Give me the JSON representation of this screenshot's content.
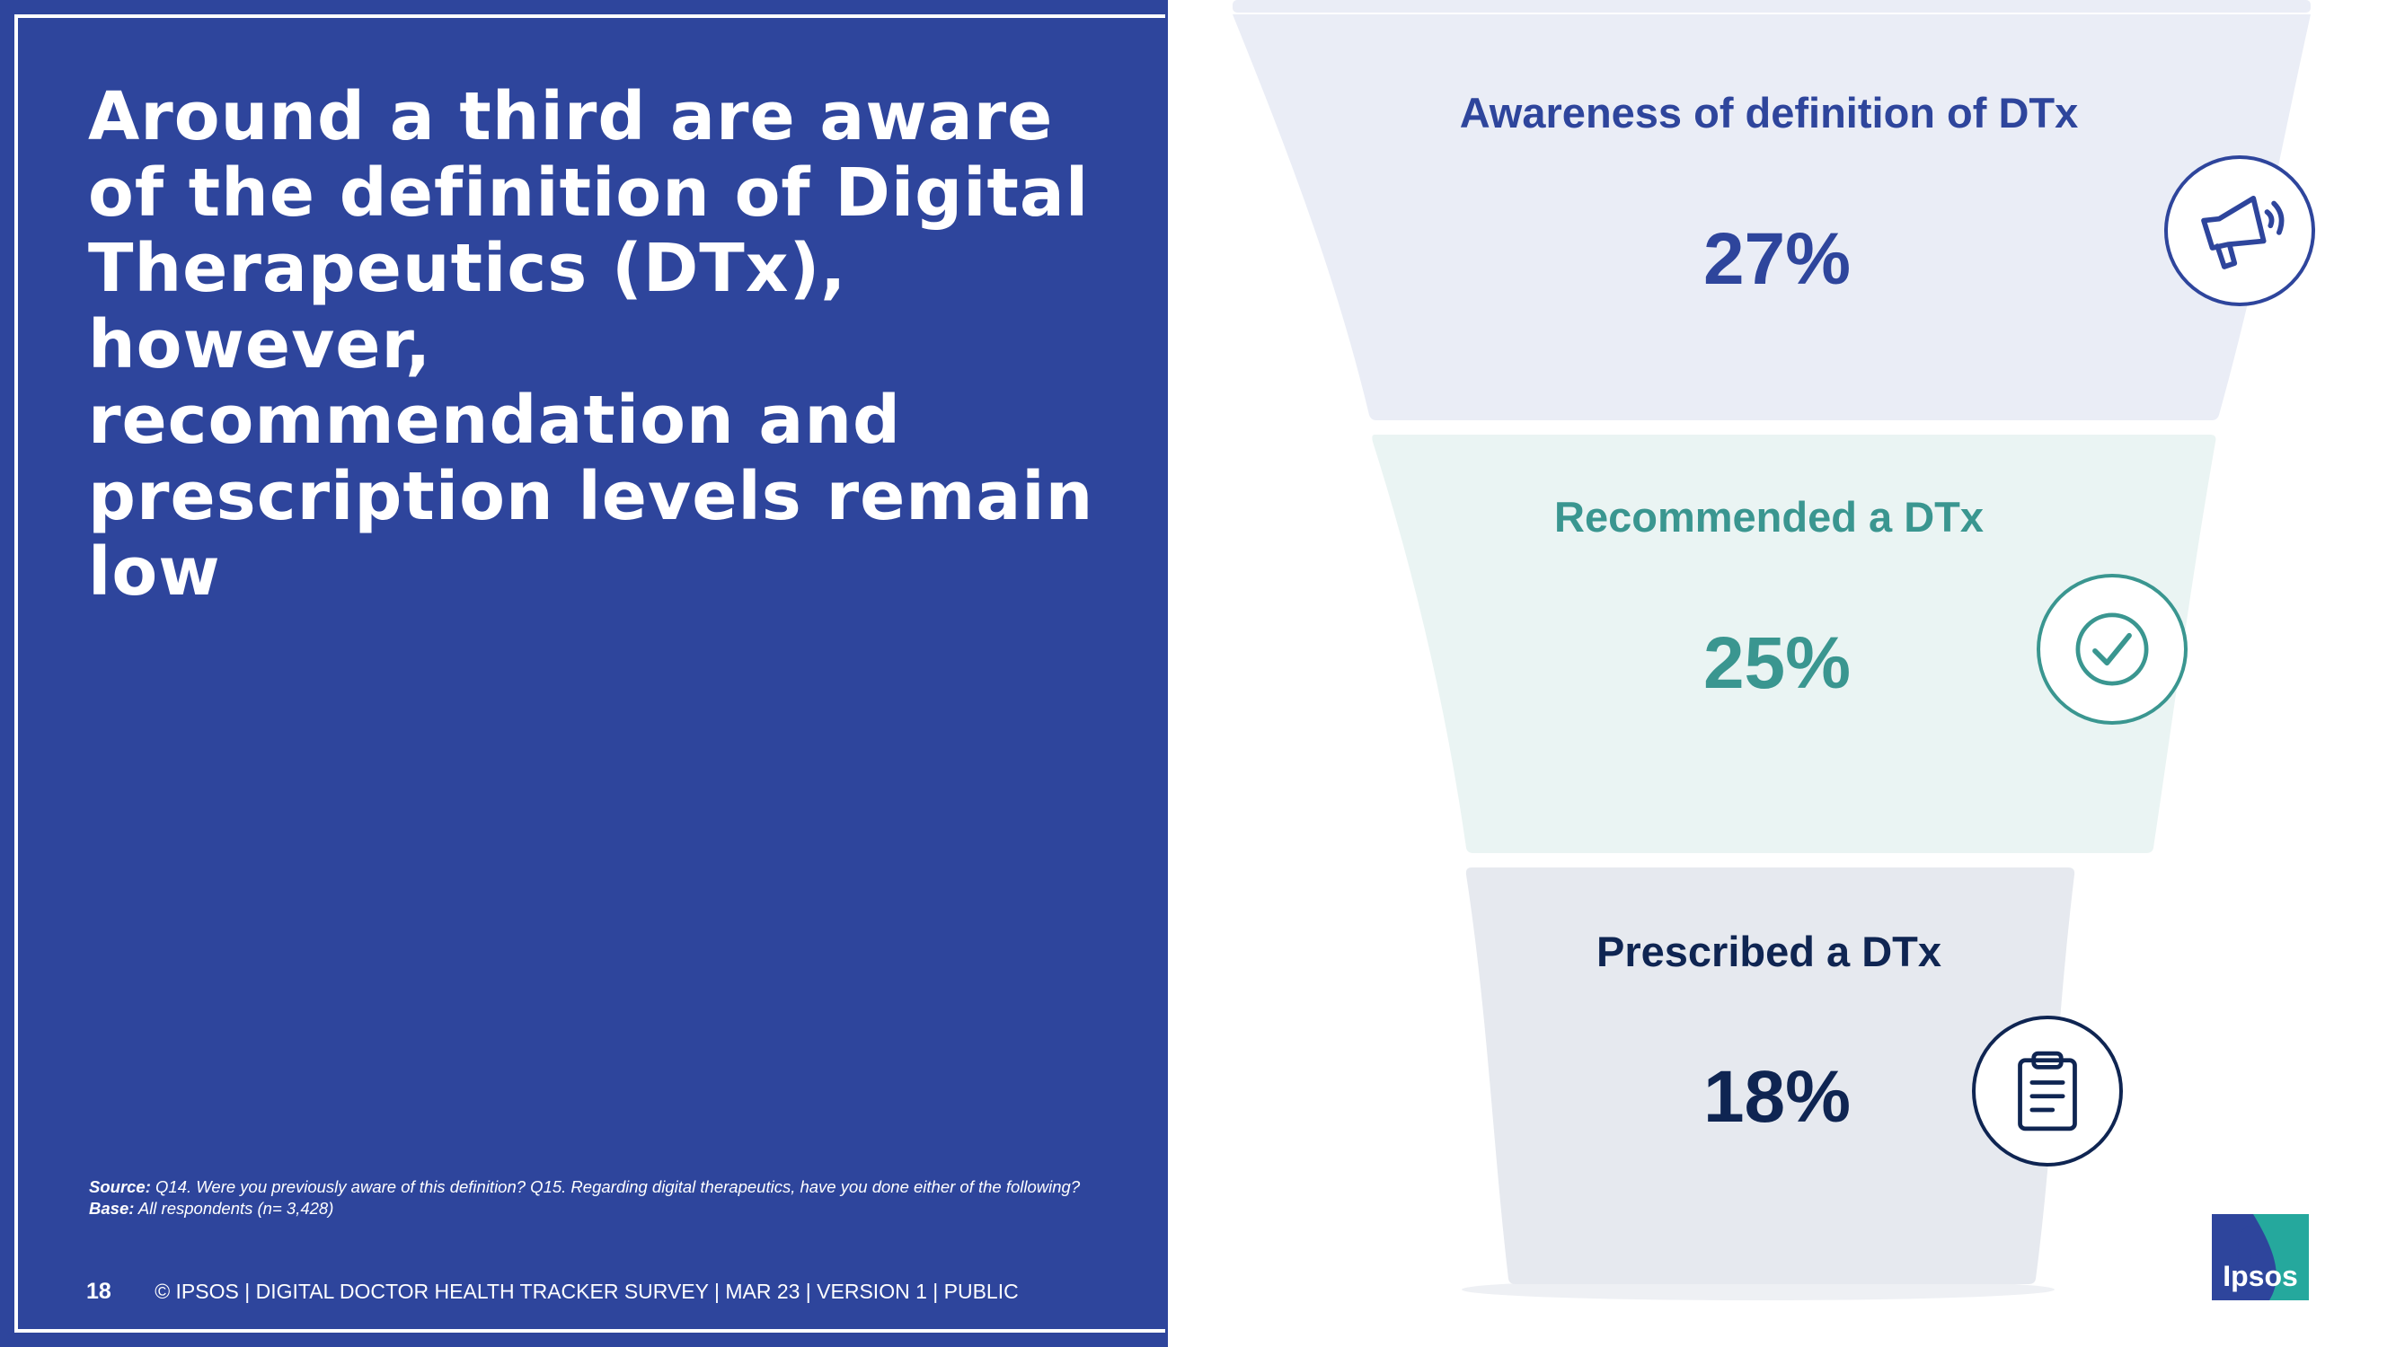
{
  "headline": "Around a third are aware of the definition of Digital Therapeutics (DTx), however, recommendation and prescription levels remain low",
  "source": {
    "source_label": "Source:",
    "source_text": "Q14. Were you previously aware of this definition? Q15. Regarding digital therapeutics, have you done either of the following?",
    "base_label": "Base:",
    "base_text": "All respondents (n= 3,428)"
  },
  "footer": {
    "page_number": "18",
    "text": "© IPSOS | DIGITAL DOCTOR HEALTH TRACKER SURVEY | MAR 23 | VERSION 1 | PUBLIC"
  },
  "logo": {
    "text": "Ipsos"
  },
  "colors": {
    "panel_blue": "#2e459c",
    "stage1": "#2e459c",
    "stage2": "#3a9690",
    "stage3": "#0f2552",
    "fill1": "#eaedf6",
    "fill2": "#eaf4f3",
    "fill3": "#e6e9ef",
    "logo_teal": "#25a89d"
  },
  "chart_data": {
    "type": "funnel",
    "title": "",
    "categories": [
      "Awareness of definition of DTx",
      "Recommended a DTx",
      "Prescribed a DTx"
    ],
    "values": [
      27,
      25,
      18
    ],
    "value_labels": [
      "27%",
      "25%",
      "18%"
    ],
    "unit": "%",
    "icons": [
      "megaphone-icon",
      "checkmark-icon",
      "clipboard-icon"
    ]
  }
}
